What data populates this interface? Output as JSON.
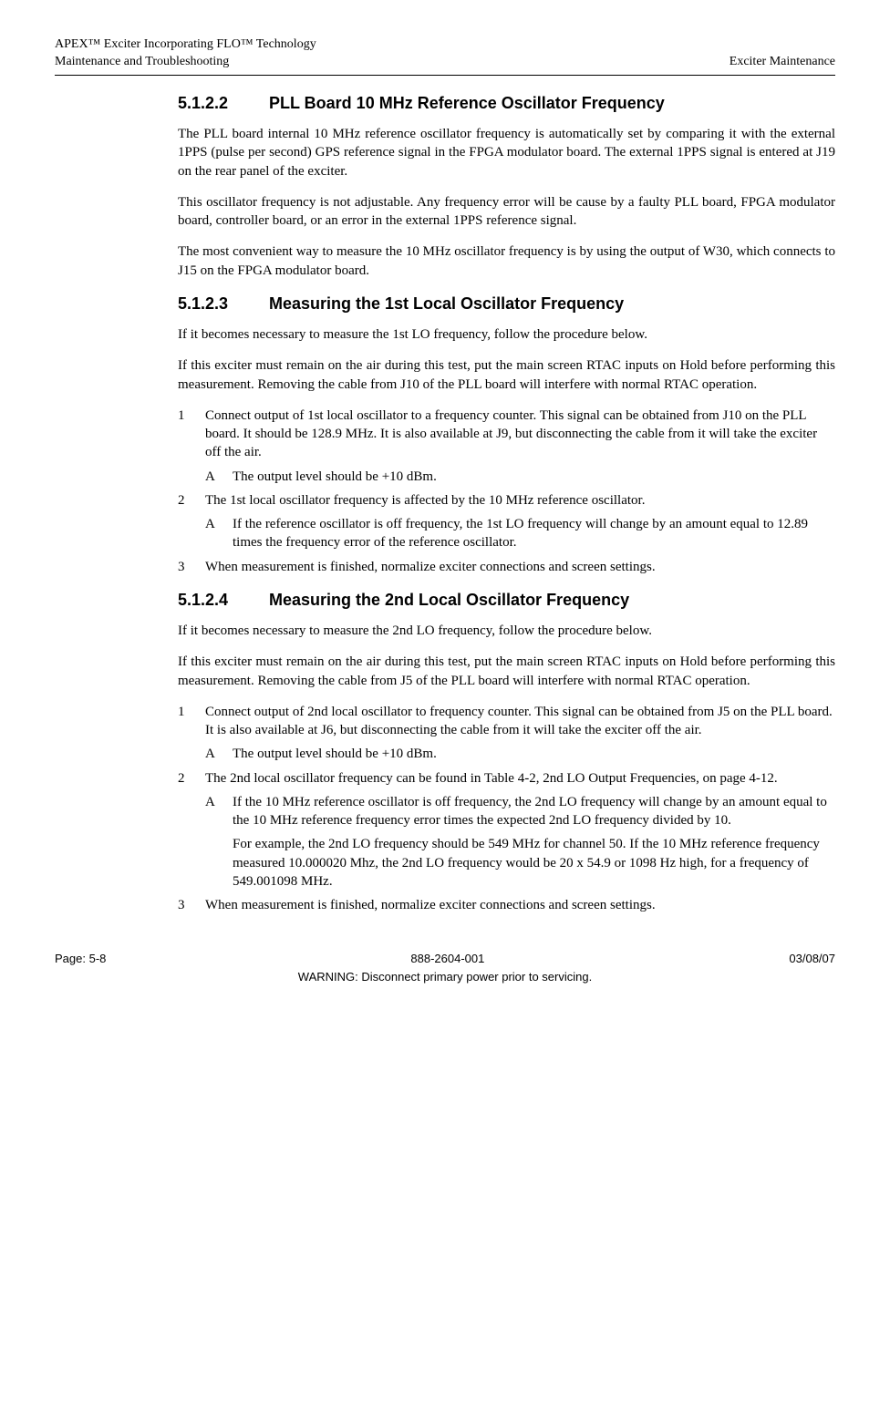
{
  "header": {
    "product_line1": "APEX™ Exciter Incorporating FLO™ Technology",
    "product_line2": "Maintenance and Troubleshooting",
    "right_label": "Exciter Maintenance"
  },
  "sections": {
    "s5122": {
      "num": "5.1.2.2",
      "title": "PLL Board 10 MHz Reference Oscillator Frequency",
      "para1": "The PLL board internal 10 MHz reference oscillator frequency is automatically set by comparing it with the external 1PPS (pulse per second) GPS reference signal in the FPGA modulator board. The external 1PPS signal is entered at J19 on the rear panel of the exciter.",
      "para2": "This oscillator frequency is not adjustable. Any frequency error will be cause by a faulty PLL board, FPGA modulator board, controller board, or an error in the external 1PPS reference signal.",
      "para3": "The most convenient way to measure the 10 MHz oscillator frequency is by using the output of W30, which connects to J15 on the FPGA modulator board."
    },
    "s5123": {
      "num": "5.1.2.3",
      "title": "Measuring the 1st Local Oscillator Frequency",
      "para1": "If it becomes necessary to measure the 1st LO frequency, follow the procedure below.",
      "para2": "If this exciter must remain on the air during this test, put the main screen RTAC inputs on Hold before performing this measurement. Removing the cable from J10 of the PLL board will interfere with normal RTAC operation.",
      "step1": "Connect output of 1st local oscillator to a frequency counter. This signal can be obtained from J10 on the PLL board. It should be 128.9 MHz. It is also available at J9, but disconnecting the cable from it will take the exciter off the air.",
      "step1A": "The output level should be +10 dBm.",
      "step2": "The 1st local oscillator frequency is affected by the 10 MHz reference oscillator.",
      "step2A": "If the reference oscillator is off frequency, the 1st LO frequency will change by an amount equal to 12.89 times the frequency error of the reference oscillator.",
      "step3": "When measurement is finished, normalize exciter connections and screen settings."
    },
    "s5124": {
      "num": "5.1.2.4",
      "title": "Measuring the 2nd Local Oscillator Frequency",
      "para1": "If it becomes necessary to measure the 2nd LO frequency, follow the procedure below.",
      "para2": "If this exciter must remain on the air during this test, put the main screen RTAC inputs on Hold before performing this measurement. Removing the cable from J5 of the PLL board will interfere with normal RTAC operation.",
      "step1": "Connect output of 2nd local oscillator to frequency counter. This signal can be obtained from J5 on the PLL board. It is also available at J6, but disconnecting the cable from it will take the exciter off the air.",
      "step1A": "The output level should be +10 dBm.",
      "step2": "The 2nd local oscillator frequency can be found in Table 4-2, 2nd LO Output Frequencies, on page 4-12.",
      "step2A": "If the 10 MHz reference oscillator is off frequency, the 2nd LO frequency will change by an amount equal to the 10 MHz reference frequency error times the expected 2nd LO frequency divided by 10.",
      "step2A_example": "For example, the 2nd LO frequency should be 549 MHz for channel 50. If the 10 MHz reference frequency measured 10.000020 Mhz, the 2nd LO frequency would be 20 x 54.9 or 1098 Hz high, for a frequency of 549.001098 MHz.",
      "step3": "When measurement is finished, normalize exciter connections and screen settings."
    }
  },
  "step_labels": {
    "n1": "1",
    "n2": "2",
    "n3": "3",
    "A": "A"
  },
  "footer": {
    "page": "Page: 5-8",
    "docnum": "888-2604-001",
    "date": "03/08/07",
    "warning": "WARNING: Disconnect primary power prior to servicing."
  }
}
